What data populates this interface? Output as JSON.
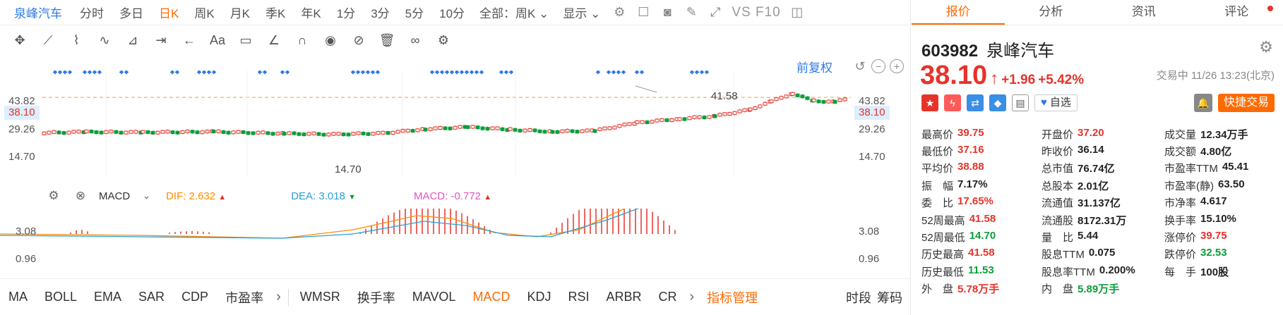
{
  "toolbar": {
    "stock_name": "泉峰汽车",
    "periods": [
      "分时",
      "多日",
      "日K",
      "周K",
      "月K",
      "季K",
      "年K",
      "1分",
      "3分",
      "5分",
      "10分"
    ],
    "active_period": "日K",
    "range_select": "全部：周K",
    "display_label": "显示",
    "vs_label": "VS F10"
  },
  "chart": {
    "fuquan_label": "前复权",
    "current_price_tag": "38.10",
    "y_labels": [
      "43.82",
      "38.10",
      "29.26",
      "14.70"
    ],
    "high_annotation": "41.58",
    "low_annotation": "14.70"
  },
  "macd": {
    "indicator_name": "MACD",
    "dif_label": "DIF: 2.632",
    "dea_label": "DEA: 3.018",
    "macd_label": "MACD: -0.772",
    "y_labels": [
      "3.08",
      "0.96"
    ],
    "colors": {
      "dif": "#ff8c00",
      "dea": "#2a9fd6",
      "macd": "#e055c0",
      "up_bar": "#e6332a"
    }
  },
  "bottom_tabs": {
    "indicators": [
      "MA",
      "BOLL",
      "EMA",
      "SAR",
      "CDP",
      "市盈率",
      "WMSR",
      "换手率",
      "MAVOL",
      "MACD",
      "KDJ",
      "RSI",
      "ARBR",
      "CR"
    ],
    "active": "MACD",
    "manage_label": "指标管理",
    "right_labels": [
      "时段",
      "筹码"
    ]
  },
  "quote": {
    "tabs": [
      "报价",
      "分析",
      "资讯",
      "评论"
    ],
    "active_tab": "报价",
    "code": "603982",
    "name": "泉峰汽车",
    "price": "38.10",
    "change": "+1.96",
    "change_pct": "+5.42%",
    "status": "交易中 11/26 13:23(北京)",
    "watch_label": "自选",
    "quick_trade_label": "快捷交易",
    "stats": [
      [
        {
          "label": "最高价",
          "value": "39.75",
          "color": "red"
        },
        {
          "label": "开盘价",
          "value": "37.20",
          "color": "red"
        },
        {
          "label": "成交量",
          "value": "12.34万手",
          "color": "dark"
        }
      ],
      [
        {
          "label": "最低价",
          "value": "37.16",
          "color": "red"
        },
        {
          "label": "昨收价",
          "value": "36.14",
          "color": "dark"
        },
        {
          "label": "成交额",
          "value": "4.80亿",
          "color": "dark"
        }
      ],
      [
        {
          "label": "平均价",
          "value": "38.88",
          "color": "red"
        },
        {
          "label": "总市值",
          "value": "76.74亿",
          "color": "dark"
        },
        {
          "label": "市盈率TTM",
          "value": "45.41",
          "color": "dark"
        }
      ],
      [
        {
          "label": "振　幅",
          "value": "7.17%",
          "color": "dark"
        },
        {
          "label": "总股本",
          "value": "2.01亿",
          "color": "dark"
        },
        {
          "label": "市盈率(静)",
          "value": "63.50",
          "color": "dark"
        }
      ],
      [
        {
          "label": "委　比",
          "value": "17.65%",
          "color": "red"
        },
        {
          "label": "流通值",
          "value": "31.137亿",
          "color": "dark"
        },
        {
          "label": "市净率",
          "value": "4.617",
          "color": "dark"
        }
      ],
      [
        {
          "label": "52周最高",
          "value": "41.58",
          "color": "red"
        },
        {
          "label": "流通股",
          "value": "8172.31万",
          "color": "dark"
        },
        {
          "label": "换手率",
          "value": "15.10%",
          "color": "dark"
        }
      ],
      [
        {
          "label": "52周最低",
          "value": "14.70",
          "color": "green"
        },
        {
          "label": "量　比",
          "value": "5.44",
          "color": "dark"
        },
        {
          "label": "涨停价",
          "value": "39.75",
          "color": "red"
        }
      ],
      [
        {
          "label": "历史最高",
          "value": "41.58",
          "color": "red"
        },
        {
          "label": "股息TTM",
          "value": "0.075",
          "color": "dark"
        },
        {
          "label": "跌停价",
          "value": "32.53",
          "color": "green"
        }
      ],
      [
        {
          "label": "历史最低",
          "value": "11.53",
          "color": "green"
        },
        {
          "label": "股息率TTM",
          "value": "0.200%",
          "color": "dark"
        },
        {
          "label": "每　手",
          "value": "100股",
          "color": "dark"
        }
      ],
      [
        {
          "label": "外　盘",
          "value": "5.78万手",
          "color": "red"
        },
        {
          "label": "内　盘",
          "value": "5.89万手",
          "color": "green"
        },
        {
          "label": "",
          "value": "",
          "color": "dark"
        }
      ]
    ]
  }
}
